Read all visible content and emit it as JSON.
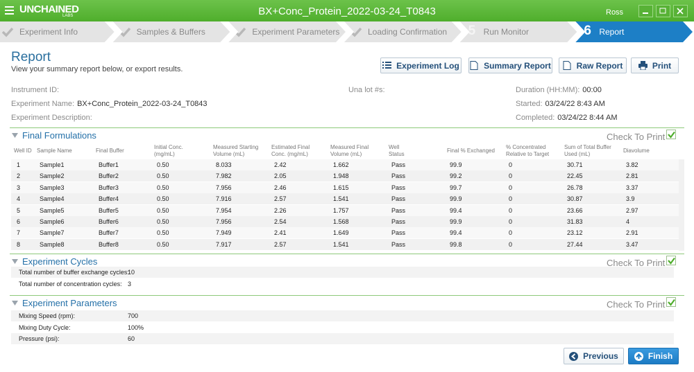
{
  "app": {
    "logo": "UNCHAINED",
    "logo_sub": "LABS",
    "title": "BX+Conc_Protein_2022-03-24_T0843",
    "user": "Ross"
  },
  "steps": [
    {
      "label": "Experiment Info"
    },
    {
      "label": "Samples & Buffers"
    },
    {
      "label": "Experiment Parameters"
    },
    {
      "label": "Loading Confirmation"
    },
    {
      "number": 5,
      "label": "Run Monitor"
    },
    {
      "number": 6,
      "label": "Report"
    }
  ],
  "header": {
    "title": "Report",
    "subtitle": "View your summary report below, or export results."
  },
  "buttons": [
    "Experiment Log",
    "Summary Report",
    "Raw Report",
    "Print"
  ],
  "info": [
    {
      "label": "Instrument ID:"
    },
    {
      "label": "Experiment Name:",
      "value": "BX+Conc_Protein_2022-03-24_T0843"
    },
    {
      "label": "Experiment Description:"
    },
    {
      "label": "Una lot #s:"
    },
    {
      "label": "Duration (HH:MM):",
      "value": "00:00"
    },
    {
      "label": "Started:",
      "value": "03/24/22 8:43 AM"
    },
    {
      "label": "Completed:",
      "value": "03/24/22 8:44 AM"
    }
  ],
  "final_formulations": {
    "title": "Final Formulations",
    "check_label": "Check To Print",
    "columns": [
      "Well ID",
      "Sample Name",
      "Final Buffer",
      "Initial Conc. (mg/mL)",
      "Measured Starting Volume (mL)",
      "Estimated Final Conc. (mg/mL)",
      "Measured Final Volume (mL)",
      "Well Status",
      "Final % Exchanged",
      "% Concentrated Relative to Target",
      "Sum of Total Buffer Used (mL)",
      "Diavolume"
    ],
    "rows": [
      [
        "1",
        "Sample1",
        "Buffer1",
        "0.50",
        "8.033",
        "2.42",
        "1.662",
        "Pass",
        "99.9",
        "0",
        "30.71",
        "3.82"
      ],
      [
        "2",
        "Sample2",
        "Buffer2",
        "0.50",
        "7.982",
        "2.05",
        "1.948",
        "Pass",
        "99.2",
        "0",
        "22.45",
        "2.81"
      ],
      [
        "3",
        "Sample3",
        "Buffer3",
        "0.50",
        "7.956",
        "2.46",
        "1.615",
        "Pass",
        "99.7",
        "0",
        "26.78",
        "3.37"
      ],
      [
        "4",
        "Sample4",
        "Buffer4",
        "0.50",
        "7.916",
        "2.57",
        "1.541",
        "Pass",
        "99.9",
        "0",
        "30.87",
        "3.9"
      ],
      [
        "5",
        "Sample5",
        "Buffer5",
        "0.50",
        "7.954",
        "2.26",
        "1.757",
        "Pass",
        "99.4",
        "0",
        "23.66",
        "2.97"
      ],
      [
        "6",
        "Sample6",
        "Buffer6",
        "0.50",
        "7.956",
        "2.54",
        "1.568",
        "Pass",
        "99.9",
        "0",
        "31.83",
        "4"
      ],
      [
        "7",
        "Sample7",
        "Buffer7",
        "0.50",
        "7.949",
        "2.41",
        "1.649",
        "Pass",
        "99.4",
        "0",
        "23.12",
        "2.91"
      ],
      [
        "8",
        "Sample8",
        "Buffer8",
        "0.50",
        "7.917",
        "2.57",
        "1.541",
        "Pass",
        "99.8",
        "0",
        "27.44",
        "3.47"
      ]
    ]
  },
  "experiment_cycles": {
    "title": "Experiment Cycles",
    "check_label": "Check To Print",
    "rows": [
      {
        "label": "Total number of buffer exchange cycles:",
        "value": "10"
      },
      {
        "label": "Total number of concentration cycles:",
        "value": "3"
      }
    ]
  },
  "experiment_parameters": {
    "title": "Experiment Parameters",
    "check_label": "Check To Print",
    "rows": [
      {
        "label": "Mixing Speed (rpm):",
        "value": "700"
      },
      {
        "label": "Mixing Duty Cycle:",
        "value": "100%"
      },
      {
        "label": "Pressure (psi):",
        "value": "60"
      }
    ]
  },
  "footer_buttons": [
    "Previous",
    "Finish"
  ]
}
